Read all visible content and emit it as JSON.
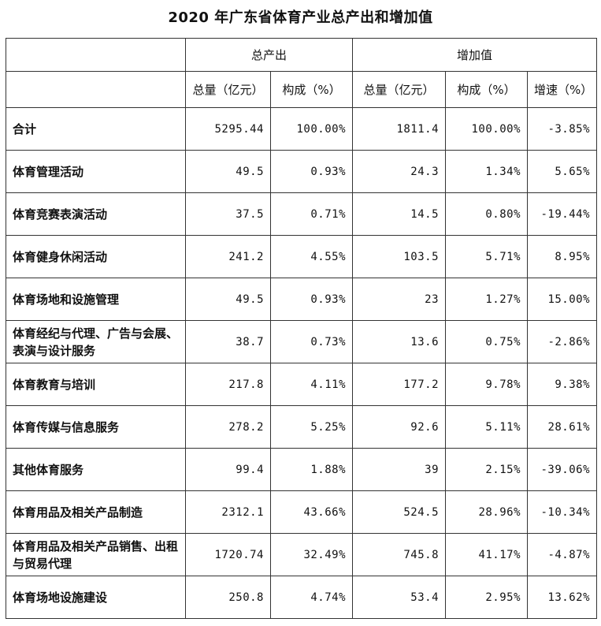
{
  "title": "2020 年广东省体育产业总产出和增加值",
  "headers": {
    "group1": "总产出",
    "group2": "增加值",
    "total_output": "总量（亿元）",
    "composition_output": "构成（%）",
    "total_added": "总量（亿元）",
    "composition_added": "构成（%）",
    "growth": "增速（%）"
  },
  "rows": [
    {
      "name": "合计",
      "out_total": "5295.44",
      "out_comp": "100.00%",
      "add_total": "1811.4",
      "add_comp": "100.00%",
      "growth": "-3.85%"
    },
    {
      "name": "体育管理活动",
      "out_total": "49.5",
      "out_comp": "0.93%",
      "add_total": "24.3",
      "add_comp": "1.34%",
      "growth": "5.65%"
    },
    {
      "name": "体育竞赛表演活动",
      "out_total": "37.5",
      "out_comp": "0.71%",
      "add_total": "14.5",
      "add_comp": "0.80%",
      "growth": "-19.44%"
    },
    {
      "name": "体育健身休闲活动",
      "out_total": "241.2",
      "out_comp": "4.55%",
      "add_total": "103.5",
      "add_comp": "5.71%",
      "growth": "8.95%"
    },
    {
      "name": "体育场地和设施管理",
      "out_total": "49.5",
      "out_comp": "0.93%",
      "add_total": "23",
      "add_comp": "1.27%",
      "growth": "15.00%"
    },
    {
      "name": "体育经纪与代理、广告与会展、表演与设计服务",
      "out_total": "38.7",
      "out_comp": "0.73%",
      "add_total": "13.6",
      "add_comp": "0.75%",
      "growth": "-2.86%"
    },
    {
      "name": "体育教育与培训",
      "out_total": "217.8",
      "out_comp": "4.11%",
      "add_total": "177.2",
      "add_comp": "9.78%",
      "growth": "9.38%"
    },
    {
      "name": "体育传媒与信息服务",
      "out_total": "278.2",
      "out_comp": "5.25%",
      "add_total": "92.6",
      "add_comp": "5.11%",
      "growth": "28.61%"
    },
    {
      "name": "其他体育服务",
      "out_total": "99.4",
      "out_comp": "1.88%",
      "add_total": "39",
      "add_comp": "2.15%",
      "growth": "-39.06%"
    },
    {
      "name": "体育用品及相关产品制造",
      "out_total": "2312.1",
      "out_comp": "43.66%",
      "add_total": "524.5",
      "add_comp": "28.96%",
      "growth": "-10.34%"
    },
    {
      "name": "体育用品及相关产品销售、出租与贸易代理",
      "out_total": "1720.74",
      "out_comp": "32.49%",
      "add_total": "745.8",
      "add_comp": "41.17%",
      "growth": "-4.87%"
    },
    {
      "name": "体育场地设施建设",
      "out_total": "250.8",
      "out_comp": "4.74%",
      "add_total": "53.4",
      "add_comp": "2.95%",
      "growth": "13.62%"
    }
  ]
}
